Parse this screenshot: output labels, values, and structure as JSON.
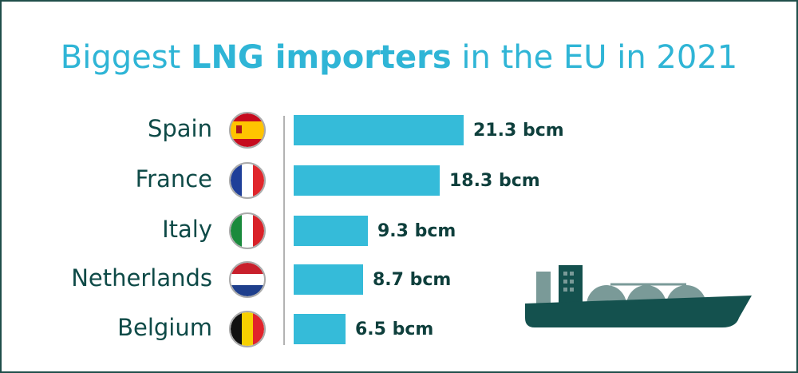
{
  "chart_data": {
    "type": "bar",
    "orientation": "horizontal",
    "title": [
      {
        "text": "Biggest ",
        "bold": false
      },
      {
        "text": "LNG importers",
        "bold": true
      },
      {
        "text": " in the EU in 2021",
        "bold": false
      }
    ],
    "categories": [
      "Spain",
      "France",
      "Italy",
      "Netherlands",
      "Belgium"
    ],
    "values": [
      21.3,
      18.3,
      9.3,
      8.7,
      6.5
    ],
    "value_labels": [
      "21.3 bcm",
      "18.3 bcm",
      "9.3 bcm",
      "8.7 bcm",
      "6.5 bcm"
    ],
    "color": "#35bbd9"
  }
}
